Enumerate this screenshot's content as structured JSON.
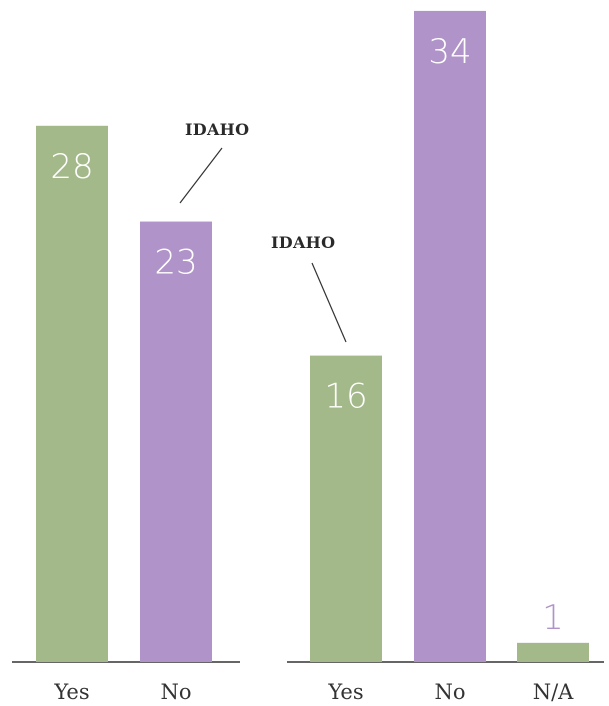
{
  "colors": {
    "yes": "#a4b98a",
    "no": "#b093c8",
    "axis": "#333333",
    "label_in": "#ffffff",
    "label_out": "#b093c8"
  },
  "chart_data": [
    {
      "type": "bar",
      "categories": [
        "Yes",
        "No"
      ],
      "values": [
        28,
        23
      ],
      "annotation": {
        "text": "IDAHO",
        "category": "No"
      }
    },
    {
      "type": "bar",
      "categories": [
        "Yes",
        "No",
        "N/A"
      ],
      "values": [
        16,
        34,
        1
      ],
      "annotation": {
        "text": "IDAHO",
        "category": "Yes"
      }
    }
  ]
}
